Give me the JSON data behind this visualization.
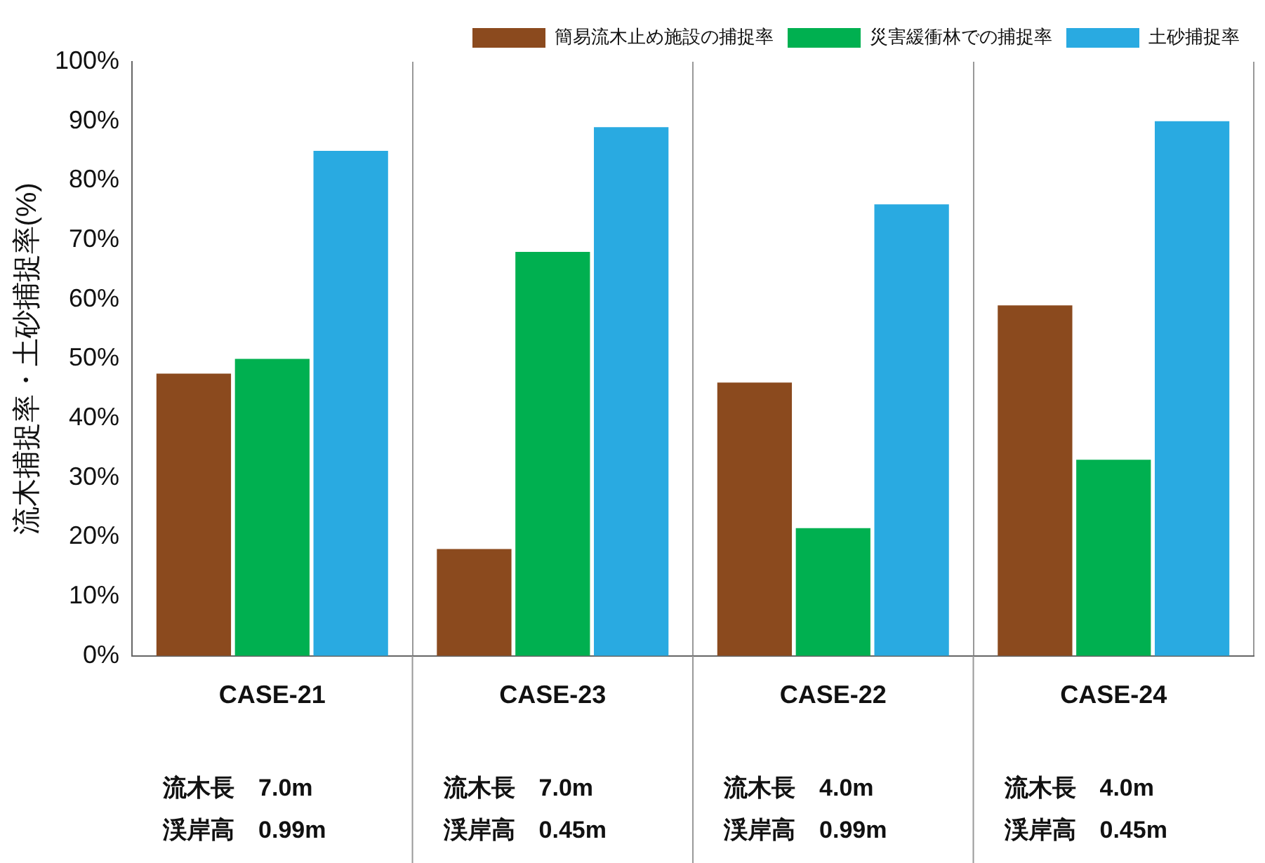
{
  "chart_data": {
    "type": "bar",
    "ylabel": "流木捕捉率・土砂捕捉率(%)",
    "categories": [
      "CASE-21",
      "CASE-23",
      "CASE-22",
      "CASE-24"
    ],
    "series": [
      {
        "name": "簡易流木止め施設の捕捉率",
        "color": "#8b4a1e",
        "values": [
          47.5,
          18,
          46,
          59
        ]
      },
      {
        "name": "災害緩衝林での捕捉率",
        "color": "#00b050",
        "values": [
          50,
          68,
          21.5,
          33
        ]
      },
      {
        "name": "土砂捕捉率",
        "color": "#29aae1",
        "values": [
          85,
          89,
          76,
          90
        ]
      }
    ],
    "ylim": [
      0,
      100
    ],
    "yticks": [
      {
        "value": 0,
        "label": "0%"
      },
      {
        "value": 10,
        "label": "10%"
      },
      {
        "value": 20,
        "label": "20%"
      },
      {
        "value": 30,
        "label": "30%"
      },
      {
        "value": 40,
        "label": "40%"
      },
      {
        "value": 50,
        "label": "50%"
      },
      {
        "value": 60,
        "label": "60%"
      },
      {
        "value": 70,
        "label": "70%"
      },
      {
        "value": 80,
        "label": "80%"
      },
      {
        "value": 90,
        "label": "90%"
      },
      {
        "value": 100,
        "label": "100%"
      }
    ],
    "grid": "x",
    "legend": "top right",
    "annotations": [
      "流木長　7.0m",
      "渓岸高　0.99m",
      "流木長　7.0m",
      "渓岸高　0.45m",
      "流木長　4.0m",
      "渓岸高　0.99m",
      "流木長　4.0m",
      "渓岸高　0.45m"
    ]
  }
}
